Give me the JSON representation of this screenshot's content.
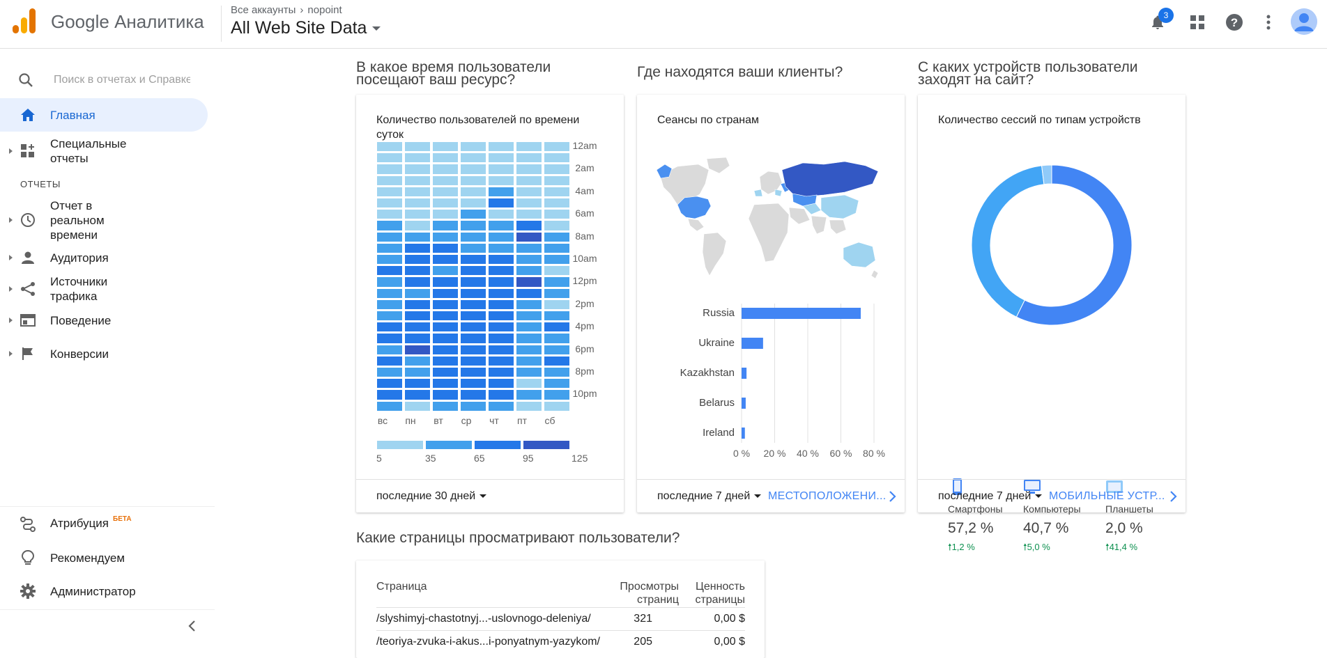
{
  "header": {
    "brand": "Google Аналитика",
    "breadcrumb_root": "Все аккаунты",
    "breadcrumb_account": "nopoint",
    "view_name": "All Web Site Data",
    "notifications_count": "3"
  },
  "sidebar": {
    "search_placeholder": "Поиск в отчетах и Справке",
    "home": "Главная",
    "custom_reports": "Специальные отчеты",
    "section_reports": "ОТЧЕТЫ",
    "realtime": "Отчет в реальном времени",
    "audience": "Аудитория",
    "acquisition": "Источники трафика",
    "behavior": "Поведение",
    "conversions": "Конверсии",
    "attribution": "Атрибуция",
    "attribution_badge": "БЕТА",
    "discover": "Рекомендуем",
    "admin": "Администратор"
  },
  "cards": {
    "time": {
      "question": "В какое время пользователи посещают ваш ресурс?",
      "title": "Количество пользователей по времени суток",
      "range": "последние 30 дней"
    },
    "location": {
      "question": "Где находятся ваши клиенты?",
      "title": "Сеансы по странам",
      "range": "последние 7 дней",
      "link": "МЕСТОПОЛОЖЕНИ..."
    },
    "devices": {
      "question": "С каких устройств пользователи заходят на сайт?",
      "title": "Количество сессий по типам устройств",
      "range": "последние 7 дней",
      "link": "МОБИЛЬНЫЕ УСТР...",
      "items": [
        {
          "name": "Смартфоны",
          "pct": "57,2 %",
          "delta": "1,2 %"
        },
        {
          "name": "Компьютеры",
          "pct": "40,7 %",
          "delta": "5,0 %"
        },
        {
          "name": "Планшеты",
          "pct": "2,0 %",
          "delta": "41,4 %"
        }
      ]
    },
    "pages": {
      "question": "Какие страницы просматривают пользователи?",
      "col_page": "Страница",
      "col_views": "Просмотры страниц",
      "col_value": "Ценность страницы",
      "rows": [
        {
          "page": "/slyshimyj-chastotnyj...-uslovnogo-deleniya/",
          "views": "321",
          "value": "0,00 $"
        },
        {
          "page": "/teoriya-zvuka-i-akus...i-ponyatnym-yazykom/",
          "views": "205",
          "value": "0,00 $"
        }
      ]
    }
  },
  "chart_data": [
    {
      "type": "heatmap",
      "title": "Количество пользователей по времени суток",
      "x": [
        "вс",
        "пн",
        "вт",
        "ср",
        "чт",
        "пт",
        "сб"
      ],
      "y_labels": [
        "12am",
        "2am",
        "4am",
        "6am",
        "8am",
        "10am",
        "12pm",
        "2pm",
        "4pm",
        "6pm",
        "8pm",
        "10pm"
      ],
      "legend": [
        5,
        35,
        65,
        95,
        125
      ],
      "values": [
        [
          10,
          10,
          10,
          10,
          10,
          10,
          10
        ],
        [
          10,
          10,
          10,
          10,
          10,
          10,
          10
        ],
        [
          10,
          10,
          10,
          10,
          10,
          10,
          10
        ],
        [
          20,
          20,
          20,
          20,
          10,
          20,
          20
        ],
        [
          20,
          20,
          20,
          20,
          40,
          20,
          20
        ],
        [
          20,
          20,
          20,
          20,
          80,
          20,
          20
        ],
        [
          20,
          20,
          20,
          40,
          20,
          20,
          20
        ],
        [
          45,
          20,
          45,
          45,
          45,
          80,
          20
        ],
        [
          45,
          45,
          45,
          45,
          45,
          110,
          45
        ],
        [
          45,
          80,
          80,
          45,
          45,
          45,
          45
        ],
        [
          45,
          80,
          80,
          80,
          80,
          45,
          45
        ],
        [
          80,
          80,
          45,
          80,
          80,
          45,
          20
        ],
        [
          45,
          80,
          80,
          80,
          80,
          110,
          45
        ],
        [
          45,
          45,
          80,
          80,
          80,
          80,
          45
        ],
        [
          45,
          80,
          80,
          80,
          80,
          45,
          20
        ],
        [
          45,
          80,
          80,
          80,
          80,
          45,
          45
        ],
        [
          80,
          80,
          80,
          80,
          80,
          45,
          80
        ],
        [
          80,
          80,
          80,
          80,
          80,
          45,
          45
        ],
        [
          45,
          110,
          80,
          80,
          80,
          45,
          45
        ],
        [
          80,
          45,
          80,
          80,
          80,
          45,
          80
        ],
        [
          45,
          45,
          80,
          80,
          80,
          45,
          45
        ],
        [
          80,
          80,
          80,
          80,
          80,
          20,
          45
        ],
        [
          80,
          80,
          80,
          80,
          80,
          45,
          45
        ],
        [
          45,
          20,
          45,
          45,
          45,
          20,
          20
        ]
      ]
    },
    {
      "type": "bar",
      "title": "Сеансы по странам",
      "categories": [
        "Russia",
        "Ukraine",
        "Kazakhstan",
        "Belarus",
        "Ireland"
      ],
      "values": [
        72,
        13,
        3,
        2.5,
        2
      ],
      "x_ticks": [
        "0 %",
        "20 %",
        "40 %",
        "60 %",
        "80 %"
      ],
      "xlim": [
        0,
        80
      ]
    },
    {
      "type": "pie",
      "title": "Количество сессий по типам устройств",
      "categories": [
        "Смартфоны",
        "Компьютеры",
        "Планшеты"
      ],
      "values": [
        57.2,
        40.7,
        2.0
      ],
      "colors": [
        "#4285f4",
        "#42a5f5",
        "#90caf9"
      ]
    }
  ],
  "colors": {
    "accent": "#4285f4",
    "active_nav_bg": "#e8f0fe",
    "delta_up": "#0d904f",
    "heat_1": "#9fd4f0",
    "heat_2": "#42a0ec",
    "heat_3": "#2478e8",
    "heat_4": "#3358c4"
  }
}
